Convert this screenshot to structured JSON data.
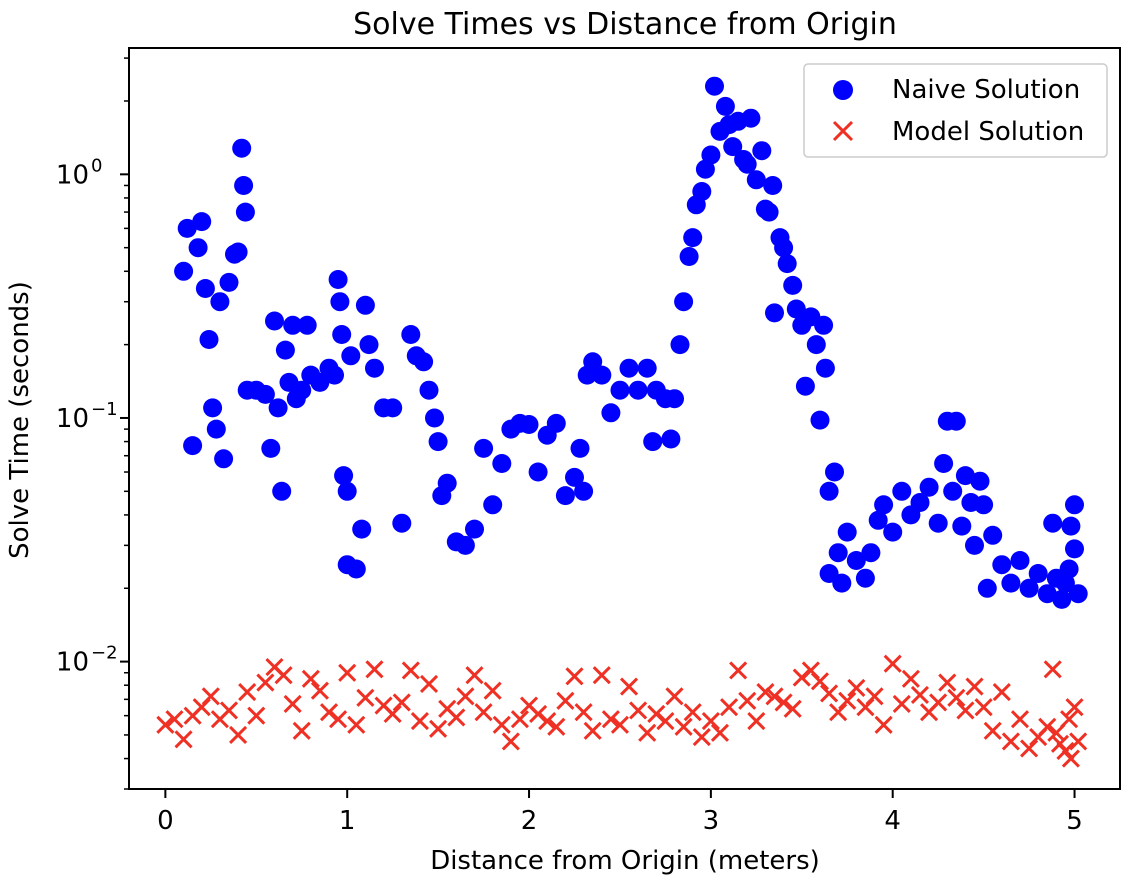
{
  "chart_data": {
    "type": "scatter",
    "title": "Solve Times vs Distance from Origin",
    "xlabel": "Distance from Origin (meters)",
    "ylabel": "Solve Time (seconds)",
    "xlim": [
      -0.2,
      5.25
    ],
    "ylim": [
      0.003,
      3.3
    ],
    "yscale": "log",
    "grid": false,
    "legend_placement": "top-right",
    "x_ticks": [
      {
        "value": 0,
        "label": "0"
      },
      {
        "value": 1,
        "label": "1"
      },
      {
        "value": 2,
        "label": "2"
      },
      {
        "value": 3,
        "label": "3"
      },
      {
        "value": 4,
        "label": "4"
      },
      {
        "value": 5,
        "label": "5"
      }
    ],
    "y_ticks": [
      {
        "value": 0.01,
        "base": "10",
        "exp": "−2"
      },
      {
        "value": 0.1,
        "base": "10",
        "exp": "−1"
      },
      {
        "value": 1,
        "base": "10",
        "exp": "0"
      }
    ],
    "series": [
      {
        "name": "Naive Solution",
        "marker": "circle",
        "color": "#0000ff",
        "points": [
          [
            0.1,
            0.4
          ],
          [
            0.12,
            0.6
          ],
          [
            0.15,
            0.077
          ],
          [
            0.18,
            0.5
          ],
          [
            0.2,
            0.64
          ],
          [
            0.22,
            0.34
          ],
          [
            0.24,
            0.21
          ],
          [
            0.26,
            0.11
          ],
          [
            0.28,
            0.09
          ],
          [
            0.3,
            0.3
          ],
          [
            0.32,
            0.068
          ],
          [
            0.35,
            0.36
          ],
          [
            0.38,
            0.47
          ],
          [
            0.4,
            0.48
          ],
          [
            0.42,
            1.28
          ],
          [
            0.43,
            0.9
          ],
          [
            0.44,
            0.7
          ],
          [
            0.45,
            0.13
          ],
          [
            0.5,
            0.13
          ],
          [
            0.55,
            0.125
          ],
          [
            0.58,
            0.075
          ],
          [
            0.6,
            0.25
          ],
          [
            0.62,
            0.11
          ],
          [
            0.64,
            0.05
          ],
          [
            0.66,
            0.19
          ],
          [
            0.68,
            0.14
          ],
          [
            0.7,
            0.24
          ],
          [
            0.72,
            0.12
          ],
          [
            0.75,
            0.13
          ],
          [
            0.78,
            0.24
          ],
          [
            0.8,
            0.15
          ],
          [
            0.85,
            0.14
          ],
          [
            0.9,
            0.16
          ],
          [
            0.93,
            0.15
          ],
          [
            0.95,
            0.37
          ],
          [
            0.96,
            0.3
          ],
          [
            0.97,
            0.22
          ],
          [
            0.98,
            0.058
          ],
          [
            1.0,
            0.05
          ],
          [
            1.02,
            0.18
          ],
          [
            1.0,
            0.025
          ],
          [
            1.05,
            0.024
          ],
          [
            1.08,
            0.035
          ],
          [
            1.1,
            0.29
          ],
          [
            1.12,
            0.2
          ],
          [
            1.15,
            0.16
          ],
          [
            1.2,
            0.11
          ],
          [
            1.25,
            0.11
          ],
          [
            1.3,
            0.037
          ],
          [
            1.35,
            0.22
          ],
          [
            1.38,
            0.18
          ],
          [
            1.42,
            0.17
          ],
          [
            1.45,
            0.13
          ],
          [
            1.48,
            0.1
          ],
          [
            1.5,
            0.08
          ],
          [
            1.52,
            0.048
          ],
          [
            1.55,
            0.054
          ],
          [
            1.6,
            0.031
          ],
          [
            1.65,
            0.03
          ],
          [
            1.7,
            0.035
          ],
          [
            1.75,
            0.075
          ],
          [
            1.8,
            0.044
          ],
          [
            1.85,
            0.065
          ],
          [
            1.9,
            0.09
          ],
          [
            1.95,
            0.095
          ],
          [
            2.0,
            0.094
          ],
          [
            2.05,
            0.06
          ],
          [
            2.1,
            0.085
          ],
          [
            2.15,
            0.095
          ],
          [
            2.2,
            0.048
          ],
          [
            2.25,
            0.057
          ],
          [
            2.28,
            0.075
          ],
          [
            2.3,
            0.05
          ],
          [
            2.32,
            0.15
          ],
          [
            2.35,
            0.17
          ],
          [
            2.4,
            0.15
          ],
          [
            2.45,
            0.105
          ],
          [
            2.5,
            0.13
          ],
          [
            2.55,
            0.16
          ],
          [
            2.6,
            0.13
          ],
          [
            2.65,
            0.16
          ],
          [
            2.68,
            0.08
          ],
          [
            2.7,
            0.13
          ],
          [
            2.75,
            0.12
          ],
          [
            2.78,
            0.082
          ],
          [
            2.8,
            0.12
          ],
          [
            2.83,
            0.2
          ],
          [
            2.85,
            0.3
          ],
          [
            2.88,
            0.46
          ],
          [
            2.9,
            0.55
          ],
          [
            2.92,
            0.75
          ],
          [
            2.95,
            0.85
          ],
          [
            2.97,
            1.05
          ],
          [
            3.0,
            1.2
          ],
          [
            3.02,
            2.3
          ],
          [
            3.05,
            1.5
          ],
          [
            3.08,
            1.9
          ],
          [
            3.1,
            1.6
          ],
          [
            3.12,
            1.3
          ],
          [
            3.15,
            1.65
          ],
          [
            3.18,
            1.15
          ],
          [
            3.2,
            1.1
          ],
          [
            3.22,
            1.7
          ],
          [
            3.25,
            0.95
          ],
          [
            3.28,
            1.25
          ],
          [
            3.3,
            0.72
          ],
          [
            3.32,
            0.7
          ],
          [
            3.34,
            0.9
          ],
          [
            3.35,
            0.27
          ],
          [
            3.38,
            0.55
          ],
          [
            3.4,
            0.5
          ],
          [
            3.42,
            0.43
          ],
          [
            3.45,
            0.35
          ],
          [
            3.47,
            0.28
          ],
          [
            3.5,
            0.24
          ],
          [
            3.52,
            0.135
          ],
          [
            3.55,
            0.26
          ],
          [
            3.58,
            0.2
          ],
          [
            3.6,
            0.098
          ],
          [
            3.62,
            0.24
          ],
          [
            3.63,
            0.16
          ],
          [
            3.65,
            0.05
          ],
          [
            3.68,
            0.06
          ],
          [
            3.65,
            0.023
          ],
          [
            3.7,
            0.028
          ],
          [
            3.72,
            0.021
          ],
          [
            3.75,
            0.034
          ],
          [
            3.8,
            0.026
          ],
          [
            3.85,
            0.022
          ],
          [
            3.88,
            0.028
          ],
          [
            3.92,
            0.038
          ],
          [
            3.95,
            0.044
          ],
          [
            4.0,
            0.034
          ],
          [
            4.05,
            0.05
          ],
          [
            4.1,
            0.04
          ],
          [
            4.15,
            0.045
          ],
          [
            4.2,
            0.052
          ],
          [
            4.25,
            0.037
          ],
          [
            4.28,
            0.065
          ],
          [
            4.3,
            0.097
          ],
          [
            4.33,
            0.05
          ],
          [
            4.35,
            0.097
          ],
          [
            4.38,
            0.036
          ],
          [
            4.4,
            0.058
          ],
          [
            4.43,
            0.045
          ],
          [
            4.45,
            0.03
          ],
          [
            4.48,
            0.055
          ],
          [
            4.5,
            0.044
          ],
          [
            4.52,
            0.02
          ],
          [
            4.55,
            0.033
          ],
          [
            4.6,
            0.025
          ],
          [
            4.65,
            0.021
          ],
          [
            4.7,
            0.026
          ],
          [
            4.75,
            0.02
          ],
          [
            4.8,
            0.023
          ],
          [
            4.85,
            0.019
          ],
          [
            4.88,
            0.037
          ],
          [
            4.9,
            0.022
          ],
          [
            4.93,
            0.018
          ],
          [
            4.95,
            0.021
          ],
          [
            4.97,
            0.024
          ],
          [
            4.98,
            0.036
          ],
          [
            5.0,
            0.029
          ],
          [
            5.0,
            0.044
          ],
          [
            5.02,
            0.019
          ]
        ]
      },
      {
        "name": "Model Solution",
        "marker": "x",
        "color": "#ee3124",
        "points": [
          [
            0.0,
            0.0055
          ],
          [
            0.05,
            0.0058
          ],
          [
            0.1,
            0.0048
          ],
          [
            0.15,
            0.006
          ],
          [
            0.2,
            0.0065
          ],
          [
            0.25,
            0.0072
          ],
          [
            0.3,
            0.0058
          ],
          [
            0.35,
            0.0063
          ],
          [
            0.4,
            0.005
          ],
          [
            0.45,
            0.0075
          ],
          [
            0.5,
            0.006
          ],
          [
            0.55,
            0.0082
          ],
          [
            0.6,
            0.0095
          ],
          [
            0.65,
            0.0088
          ],
          [
            0.7,
            0.0067
          ],
          [
            0.75,
            0.0052
          ],
          [
            0.8,
            0.0085
          ],
          [
            0.85,
            0.0076
          ],
          [
            0.9,
            0.0062
          ],
          [
            0.95,
            0.0058
          ],
          [
            1.0,
            0.009
          ],
          [
            1.05,
            0.0055
          ],
          [
            1.1,
            0.0071
          ],
          [
            1.15,
            0.0093
          ],
          [
            1.2,
            0.0066
          ],
          [
            1.25,
            0.0061
          ],
          [
            1.3,
            0.0068
          ],
          [
            1.35,
            0.0092
          ],
          [
            1.4,
            0.0057
          ],
          [
            1.45,
            0.0081
          ],
          [
            1.5,
            0.0053
          ],
          [
            1.55,
            0.0064
          ],
          [
            1.6,
            0.0059
          ],
          [
            1.65,
            0.0072
          ],
          [
            1.7,
            0.0088
          ],
          [
            1.75,
            0.0062
          ],
          [
            1.8,
            0.0076
          ],
          [
            1.85,
            0.0055
          ],
          [
            1.9,
            0.0047
          ],
          [
            1.95,
            0.0058
          ],
          [
            2.0,
            0.0066
          ],
          [
            2.05,
            0.0061
          ],
          [
            2.1,
            0.0057
          ],
          [
            2.15,
            0.0054
          ],
          [
            2.2,
            0.0069
          ],
          [
            2.25,
            0.0087
          ],
          [
            2.3,
            0.0062
          ],
          [
            2.35,
            0.0052
          ],
          [
            2.4,
            0.0088
          ],
          [
            2.45,
            0.0058
          ],
          [
            2.5,
            0.0055
          ],
          [
            2.55,
            0.0079
          ],
          [
            2.6,
            0.0063
          ],
          [
            2.65,
            0.0051
          ],
          [
            2.7,
            0.0061
          ],
          [
            2.75,
            0.0057
          ],
          [
            2.8,
            0.0072
          ],
          [
            2.85,
            0.0054
          ],
          [
            2.9,
            0.0062
          ],
          [
            2.95,
            0.0049
          ],
          [
            3.0,
            0.0057
          ],
          [
            3.05,
            0.0051
          ],
          [
            3.1,
            0.0065
          ],
          [
            3.15,
            0.0092
          ],
          [
            3.2,
            0.0069
          ],
          [
            3.25,
            0.0057
          ],
          [
            3.3,
            0.0075
          ],
          [
            3.35,
            0.0072
          ],
          [
            3.4,
            0.0068
          ],
          [
            3.45,
            0.0064
          ],
          [
            3.5,
            0.0086
          ],
          [
            3.55,
            0.0092
          ],
          [
            3.6,
            0.0083
          ],
          [
            3.65,
            0.0074
          ],
          [
            3.7,
            0.0062
          ],
          [
            3.75,
            0.0069
          ],
          [
            3.8,
            0.0078
          ],
          [
            3.85,
            0.0065
          ],
          [
            3.9,
            0.0072
          ],
          [
            3.95,
            0.0055
          ],
          [
            4.0,
            0.0098
          ],
          [
            4.05,
            0.0067
          ],
          [
            4.1,
            0.0085
          ],
          [
            4.15,
            0.0073
          ],
          [
            4.2,
            0.0062
          ],
          [
            4.25,
            0.0068
          ],
          [
            4.3,
            0.0082
          ],
          [
            4.35,
            0.0071
          ],
          [
            4.4,
            0.0063
          ],
          [
            4.45,
            0.0079
          ],
          [
            4.5,
            0.0065
          ],
          [
            4.55,
            0.0052
          ],
          [
            4.6,
            0.0075
          ],
          [
            4.65,
            0.0047
          ],
          [
            4.7,
            0.0058
          ],
          [
            4.75,
            0.0044
          ],
          [
            4.8,
            0.0049
          ],
          [
            4.85,
            0.0054
          ],
          [
            4.88,
            0.0093
          ],
          [
            4.9,
            0.0051
          ],
          [
            4.92,
            0.0046
          ],
          [
            4.95,
            0.0043
          ],
          [
            4.97,
            0.0058
          ],
          [
            4.98,
            0.004
          ],
          [
            5.0,
            0.0065
          ],
          [
            5.02,
            0.0047
          ]
        ]
      }
    ]
  }
}
